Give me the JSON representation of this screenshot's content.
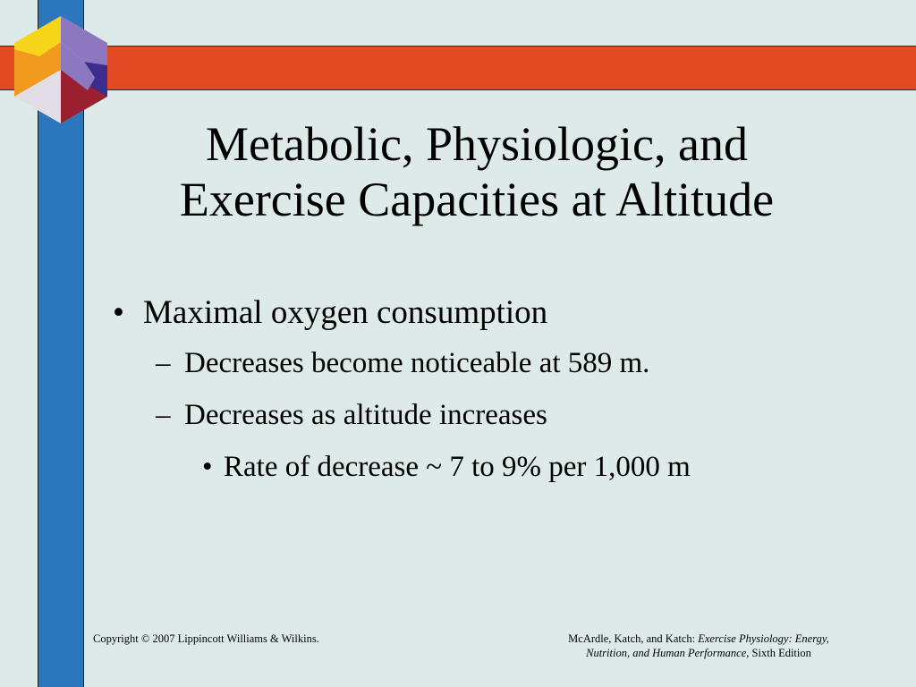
{
  "slide": {
    "title_line1": "Metabolic, Physiologic, and",
    "title_line2": "Exercise Capacities at Altitude",
    "bullets": [
      {
        "marker": "•",
        "text": "Maximal oxygen consumption"
      },
      {
        "marker": "–",
        "text": "Decreases become noticeable at 589 m."
      },
      {
        "marker": "–",
        "text": "Decreases as altitude increases"
      },
      {
        "marker": "•",
        "text": "Rate of decrease ~ 7 to 9% per 1,000 m"
      }
    ],
    "footer_left": "Copyright © 2007 Lippincott Williams & Wilkins.",
    "footer_right": {
      "authors": "McArdle, Katch, and Katch: ",
      "book_title_part1": "Exercise Physiology: Energy,",
      "book_title_part2": "Nutrition, and Human Performance,",
      "edition": " Sixth Edition"
    }
  },
  "colors": {
    "background": "#deeaea",
    "red_band": "#e24a23",
    "blue_bar": "#2b76bd",
    "logo_yellow": "#f7d51b",
    "logo_orange": "#f29a1f",
    "logo_purple": "#8b78c0",
    "logo_dark_purple": "#3d2c8e",
    "logo_gray": "#e3dde8",
    "logo_red": "#9a2030"
  },
  "icons": {
    "logo": "cube-logo-icon"
  }
}
